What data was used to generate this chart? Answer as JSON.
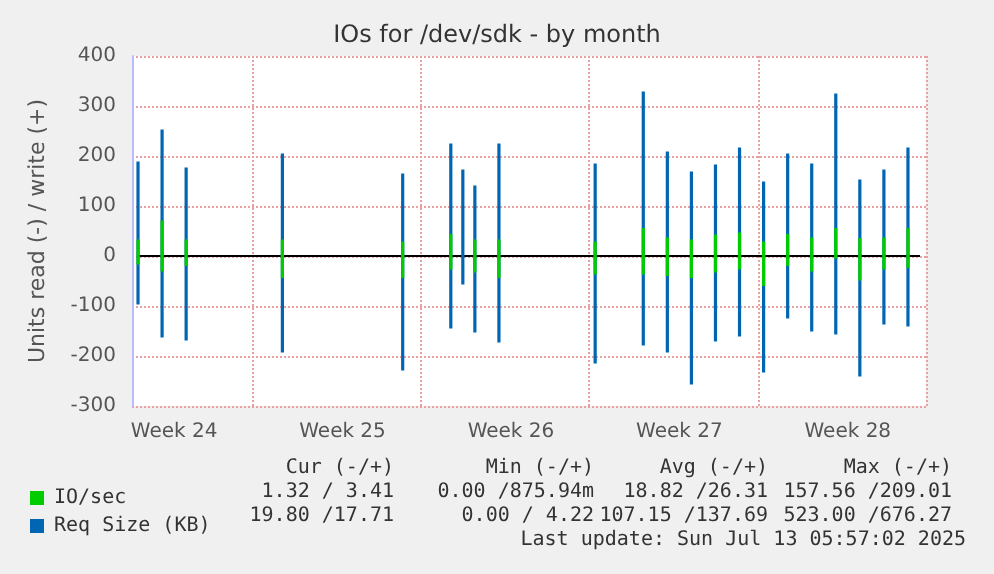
{
  "chart_data": {
    "type": "bar",
    "title": "IOs for /dev/sdk - by month",
    "ylabel": "Units read (-) / write (+)",
    "categories": [
      null,
      null,
      null,
      "Week 24",
      null,
      null,
      null,
      null,
      null,
      null,
      null,
      null,
      null,
      null,
      null,
      null,
      null,
      "Week 25",
      null,
      null,
      null,
      null,
      null,
      null,
      null,
      null,
      null,
      null,
      null,
      null,
      null,
      "Week 26",
      null,
      null,
      null,
      null,
      null,
      null,
      null,
      null,
      null,
      null,
      null,
      null,
      null,
      "Week 27",
      null,
      null,
      null,
      null,
      null,
      null,
      null,
      null,
      null,
      null,
      null,
      null,
      null,
      "Week 28",
      null,
      null,
      null,
      null,
      null,
      null
    ],
    "ylim": [
      -300,
      400
    ],
    "yticks": [
      -300,
      -200,
      -100,
      0,
      100,
      200,
      300,
      400
    ],
    "grid": true,
    "legend": "bottom left",
    "series": [
      {
        "name": "Req Size (KB)",
        "color": "#0066b3",
        "values": [
          189,
          null,
          253,
          null,
          177,
          null,
          null,
          null,
          null,
          null,
          null,
          null,
          205,
          null,
          null,
          null,
          null,
          null,
          null,
          null,
          null,
          null,
          165,
          null,
          null,
          null,
          225,
          173,
          141,
          null,
          225,
          null,
          null,
          null,
          null,
          null,
          null,
          null,
          185,
          null,
          null,
          null,
          329,
          null,
          209,
          null,
          169,
          null,
          183,
          null,
          217,
          null,
          149,
          null,
          205,
          null,
          185,
          null,
          325,
          null,
          153,
          null,
          173,
          null,
          217,
          null
        ]
      },
      {
        "color": "#0066b3",
        "values": [
          -97,
          null,
          -163,
          null,
          -169,
          null,
          null,
          null,
          null,
          null,
          null,
          null,
          -193,
          null,
          null,
          null,
          null,
          null,
          null,
          null,
          null,
          null,
          -229,
          null,
          null,
          null,
          -145,
          -57,
          -153,
          null,
          -173,
          null,
          null,
          null,
          null,
          null,
          null,
          null,
          -215,
          null,
          null,
          null,
          -179,
          null,
          -193,
          null,
          -257,
          null,
          -171,
          null,
          -161,
          null,
          -233,
          null,
          -125,
          null,
          -151,
          null,
          -157,
          null,
          -241,
          null,
          -137,
          null,
          -141,
          null
        ]
      },
      {
        "name": "IO/sec",
        "color": "#00cc00",
        "values": [
          33,
          null,
          71,
          null,
          33,
          null,
          null,
          null,
          null,
          null,
          null,
          null,
          33,
          null,
          null,
          null,
          null,
          null,
          null,
          null,
          null,
          null,
          29,
          null,
          null,
          null,
          44,
          null,
          33,
          null,
          33,
          null,
          null,
          null,
          null,
          null,
          null,
          null,
          29,
          null,
          null,
          null,
          56,
          null,
          37,
          null,
          33,
          null,
          43,
          null,
          47,
          null,
          29,
          null,
          44,
          null,
          37,
          null,
          56,
          null,
          36,
          null,
          37,
          null,
          56,
          null
        ]
      },
      {
        "color": "#00cc00",
        "values": [
          -17,
          null,
          -31,
          null,
          -20,
          null,
          null,
          null,
          null,
          null,
          null,
          null,
          -44,
          null,
          null,
          null,
          null,
          null,
          null,
          null,
          null,
          null,
          -44,
          null,
          null,
          null,
          -27,
          null,
          -33,
          null,
          -44,
          null,
          null,
          null,
          null,
          null,
          null,
          null,
          -37,
          null,
          null,
          null,
          -37,
          null,
          -40,
          null,
          -44,
          null,
          -33,
          null,
          -27,
          null,
          -60,
          null,
          -20,
          null,
          -31,
          null,
          -5,
          null,
          -49,
          null,
          -27,
          null,
          -24,
          null
        ]
      }
    ],
    "annotations": [
      "Cur (-/+)",
      "Min (-/+)",
      "Avg (-/+)",
      "Max (-/+)",
      "1.32 / 3.41",
      "0.00 /875.94m",
      "18.82 /26.31",
      "157.56 /209.01",
      "19.80 /17.71",
      "0.00 / 4.22",
      "107.15 /137.69",
      "523.00 /676.27",
      "Last update: Sun Jul 13 05:57:02 2025"
    ]
  }
}
